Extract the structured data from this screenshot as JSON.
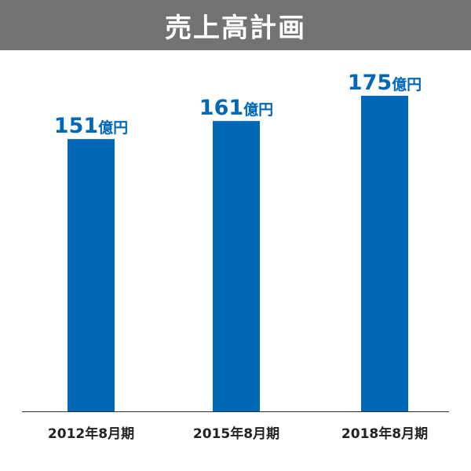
{
  "chart_data": {
    "type": "bar",
    "title": "売上高計画",
    "categories": [
      "2012年8月期",
      "2015年8月期",
      "2018年8月期"
    ],
    "values": [
      151,
      161,
      175
    ],
    "unit": "億円",
    "value_labels": [
      "151",
      "161",
      "175"
    ],
    "ylim": [
      0,
      175
    ],
    "grid": false,
    "legend": "none",
    "colors": {
      "bar": "#0068b7",
      "value_label": "#0068b7",
      "title_bg": "#737373",
      "title_text": "#ffffff",
      "axis": "#333333",
      "category_text": "#222222"
    }
  }
}
